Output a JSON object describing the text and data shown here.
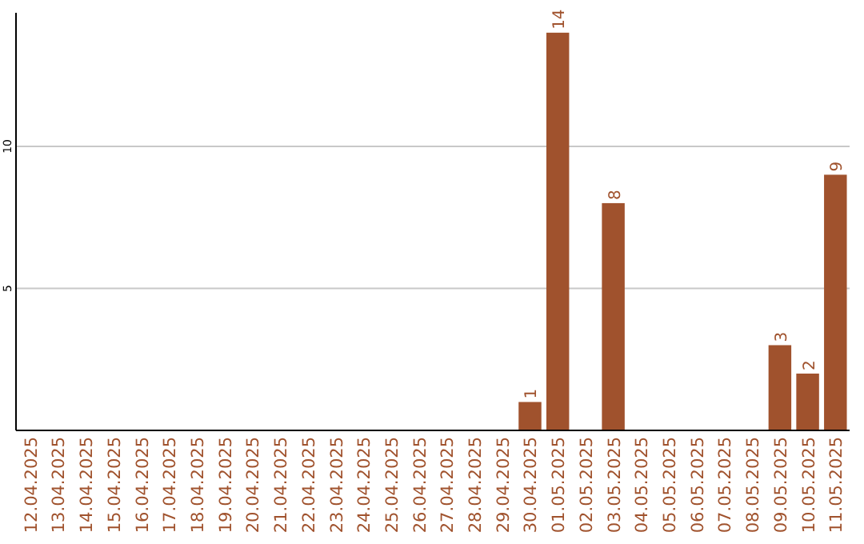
{
  "chart_data": {
    "type": "bar",
    "categories": [
      "12.04.2025",
      "13.04.2025",
      "14.04.2025",
      "15.04.2025",
      "16.04.2025",
      "17.04.2025",
      "18.04.2025",
      "19.04.2025",
      "20.04.2025",
      "21.04.2025",
      "22.04.2025",
      "23.04.2025",
      "24.04.2025",
      "25.04.2025",
      "26.04.2025",
      "27.04.2025",
      "28.04.2025",
      "29.04.2025",
      "30.04.2025",
      "01.05.2025",
      "02.05.2025",
      "03.05.2025",
      "04.05.2025",
      "05.05.2025",
      "06.05.2025",
      "07.05.2025",
      "08.05.2025",
      "09.05.2025",
      "10.05.2025",
      "11.05.2025"
    ],
    "values": [
      0,
      0,
      0,
      0,
      0,
      0,
      0,
      0,
      0,
      0,
      0,
      0,
      0,
      0,
      0,
      0,
      0,
      0,
      1,
      14,
      0,
      8,
      0,
      0,
      0,
      0,
      0,
      3,
      2,
      9
    ],
    "value_labels": [
      null,
      null,
      null,
      null,
      null,
      null,
      null,
      null,
      null,
      null,
      null,
      null,
      null,
      null,
      null,
      null,
      null,
      null,
      "1",
      "14",
      null,
      "8",
      null,
      null,
      null,
      null,
      null,
      "3",
      "2",
      "9"
    ],
    "color": "#a0522d",
    "ylim": [
      0,
      14.7
    ],
    "yticks": [
      5,
      10
    ],
    "grid": "y"
  }
}
